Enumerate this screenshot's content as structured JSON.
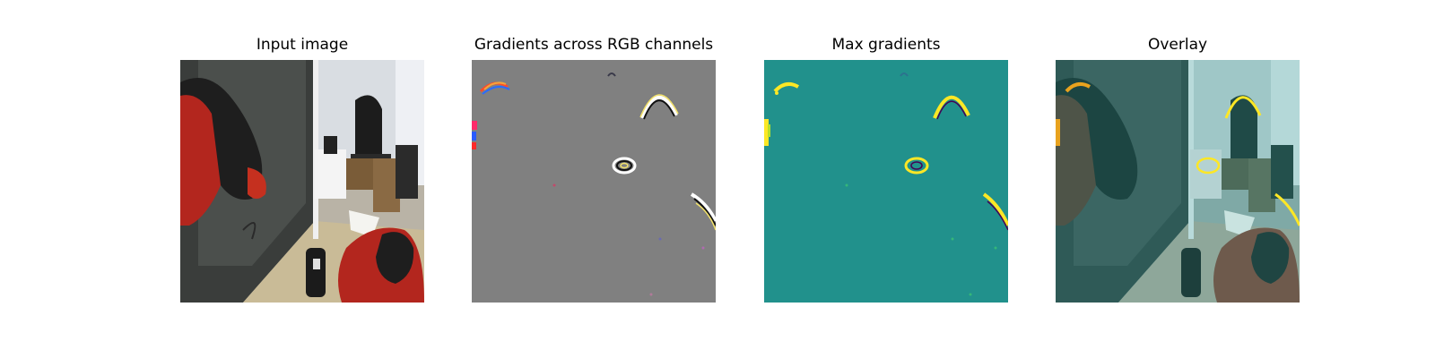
{
  "figure": {
    "panels": [
      {
        "title": "Input image"
      },
      {
        "title": "Gradients across RGB channels"
      },
      {
        "title": "Max gradients"
      },
      {
        "title": "Overlay"
      }
    ]
  },
  "colors": {
    "gradient_gray": "#808080",
    "max_grad_teal": "#21918c",
    "highlight_yellow": "#fde725",
    "robot_red": "#b3261e"
  }
}
